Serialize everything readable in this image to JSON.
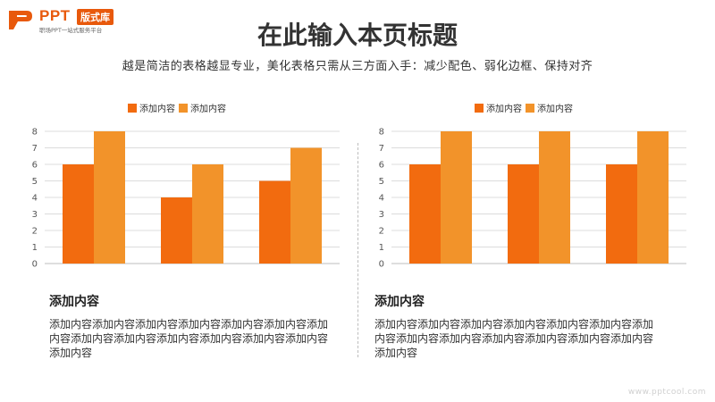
{
  "logo": {
    "text": "PPT",
    "badge": "版式库",
    "tagline": "职场PPT一站式服务平台"
  },
  "page": {
    "title": "在此输入本页标题",
    "subtitle": "越是简洁的表格越显专业，美化表格只需从三方面入手：减少配色、弱化边框、保持对齐"
  },
  "chart_data": [
    {
      "type": "bar",
      "categories": [
        "",
        "",
        ""
      ],
      "series": [
        {
          "name": "添加内容",
          "values": [
            6,
            4,
            5
          ],
          "color": "#f26b0f"
        },
        {
          "name": "添加内容",
          "values": [
            8,
            6,
            7
          ],
          "color": "#f2932a"
        }
      ],
      "ylim": [
        0,
        8
      ],
      "yticks": [
        "0",
        "1",
        "2",
        "3",
        "4",
        "5",
        "6",
        "7",
        "8"
      ],
      "grid": true,
      "legend": "top-center"
    },
    {
      "type": "bar",
      "categories": [
        "",
        "",
        ""
      ],
      "series": [
        {
          "name": "添加内容",
          "values": [
            6,
            6,
            6
          ],
          "color": "#f26b0f"
        },
        {
          "name": "添加内容",
          "values": [
            8,
            8,
            8
          ],
          "color": "#f2932a"
        }
      ],
      "ylim": [
        0,
        8
      ],
      "yticks": [
        "0",
        "1",
        "2",
        "3",
        "4",
        "5",
        "6",
        "7",
        "8"
      ],
      "grid": true,
      "legend": "top-center"
    }
  ],
  "sections": [
    {
      "heading": "添加内容",
      "body": "添加内容添加内容添加内容添加内容添加内容添加内容添加内容添加内容添加内容添加内容添加内容添加内容添加内容添加内容"
    },
    {
      "heading": "添加内容",
      "body": "添加内容添加内容添加内容添加内容添加内容添加内容添加内容添加内容添加内容添加内容添加内容添加内容添加内容添加内容"
    }
  ],
  "footer": {
    "url": "www.pptcool.com"
  }
}
